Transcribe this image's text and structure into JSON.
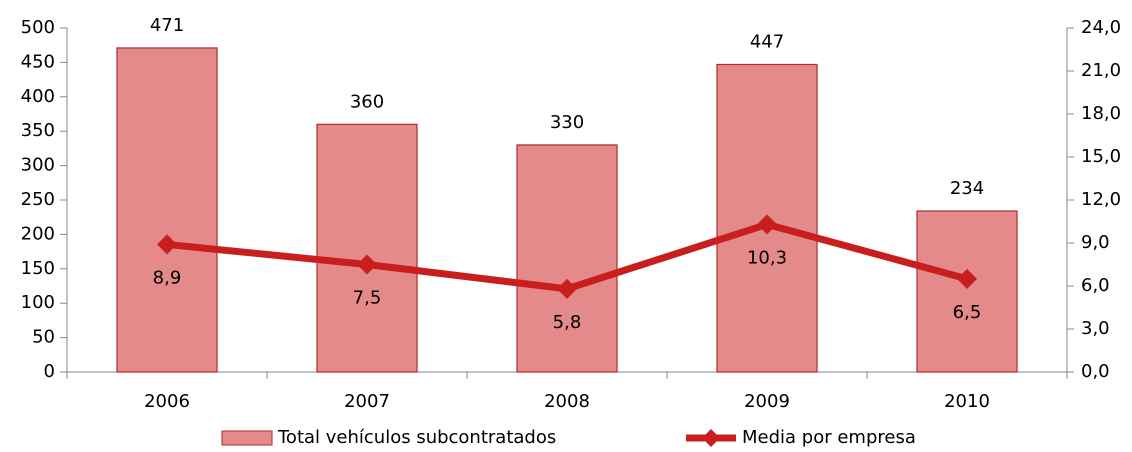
{
  "chart_data": {
    "type": "bar",
    "categories": [
      "2006",
      "2007",
      "2008",
      "2009",
      "2010"
    ],
    "series": [
      {
        "name": "Total vehículos subcontratados",
        "type": "bar",
        "color": "#e48a8a",
        "values": [
          471,
          360,
          330,
          447,
          234
        ]
      },
      {
        "name": "Media por empresa",
        "type": "line",
        "axis": "y2",
        "color": "#c81e1e",
        "values": [
          8.9,
          7.5,
          5.8,
          10.3,
          6.5
        ],
        "value_labels": [
          "8,9",
          "7,5",
          "5,8",
          "10,3",
          "6,5"
        ]
      }
    ],
    "ylim": [
      0,
      500
    ],
    "yticks": [
      0,
      50,
      100,
      150,
      200,
      250,
      300,
      350,
      400,
      450,
      500
    ],
    "y2lim": [
      0,
      24
    ],
    "y2ticks": [
      {
        "value": 0,
        "label": "0,0"
      },
      {
        "value": 3,
        "label": "3,0"
      },
      {
        "value": 6,
        "label": "6,0"
      },
      {
        "value": 9,
        "label": "9,0"
      },
      {
        "value": 12,
        "label": "12,0"
      },
      {
        "value": 15,
        "label": "15,0"
      },
      {
        "value": 18,
        "label": "18,0"
      },
      {
        "value": 21,
        "label": "21,0"
      },
      {
        "value": 24,
        "label": "24,0"
      }
    ],
    "legend": "bottom"
  }
}
